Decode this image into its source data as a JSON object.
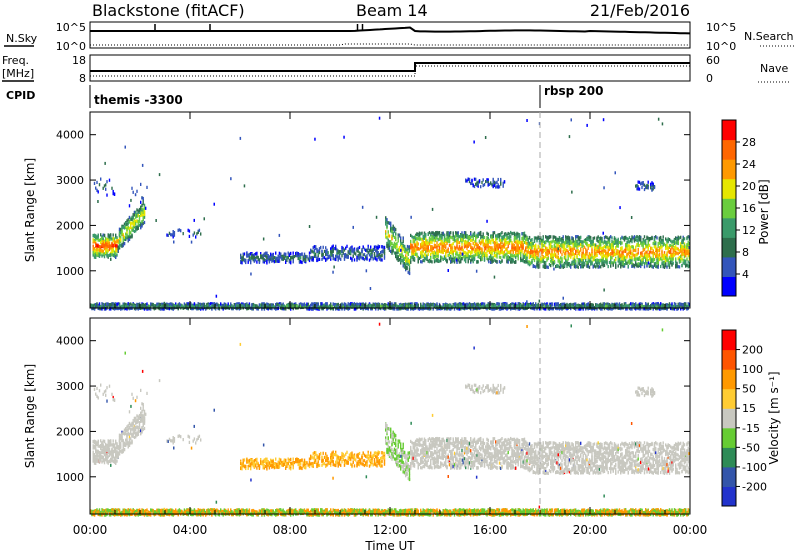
{
  "header": {
    "station": "Blackstone (fitACF)",
    "beam": "Beam 14",
    "date": "21/Feb/2016"
  },
  "summary": {
    "nsky_label": "N.Sky",
    "nsky_ticks": [
      "10^5",
      "10^0"
    ],
    "nsearch_label": "N.Search",
    "nsearch_ticks": [
      "10^5",
      "10^0"
    ],
    "freq_label": "Freq.",
    "freq_unit": "[MHz]",
    "freq_ticks": [
      "18",
      "8"
    ],
    "nave_label": "Nave",
    "nave_ticks": [
      "60",
      "0"
    ],
    "cpid_label": "CPID",
    "cpid_segments": [
      {
        "label": "themis -3300",
        "start_hour": 0
      },
      {
        "label": "rbsp 200",
        "start_hour": 18
      }
    ]
  },
  "colors": {
    "power_scale": [
      "#0000ff",
      "#3355bb",
      "#2e6e4c",
      "#3a9a6a",
      "#6acd3e",
      "#e6e600",
      "#ff9900",
      "#ff6600",
      "#ff0000"
    ],
    "velocity_scale": [
      "#ff0000",
      "#ff5500",
      "#ff9900",
      "#ffcc33",
      "#c8c8c0",
      "#66cc33",
      "#2e8b57",
      "#3355aa",
      "#2233cc"
    ]
  },
  "chart_data": [
    {
      "type": "heatmap",
      "name": "power",
      "ylabel": "Slant Range [km]",
      "yticks": [
        "4000",
        "3000",
        "2000",
        "1000"
      ],
      "ylim": [
        180,
        4500
      ],
      "xlim_hours": [
        0,
        24
      ],
      "colorbar_label": "Power [dB]",
      "colorbar_ticks": [
        "28",
        "24",
        "20",
        "16",
        "12",
        "8",
        "4"
      ],
      "colorbar_range": [
        0,
        32
      ]
    },
    {
      "type": "heatmap",
      "name": "velocity",
      "ylabel": "Slant Range [km]",
      "yticks": [
        "4000",
        "3000",
        "2000",
        "1000"
      ],
      "ylim": [
        180,
        4500
      ],
      "xlim_hours": [
        0,
        24
      ],
      "colorbar_label": "Velocity [m s⁻¹]",
      "colorbar_ticks": [
        "200",
        "100",
        "50",
        "15",
        "-15",
        "-50",
        "-100",
        "-200"
      ]
    }
  ],
  "xaxis": {
    "ticks": [
      "00:00",
      "04:00",
      "08:00",
      "12:00",
      "16:00",
      "20:00",
      "00:00"
    ],
    "tick_hours": [
      0,
      4,
      8,
      12,
      16,
      20,
      24
    ],
    "label": "Time UT"
  },
  "scatter_regions": [
    {
      "t0": 0.1,
      "t1": 1.1,
      "r_center": 1580,
      "r_spread": 250,
      "density": 0.95,
      "power": 22
    },
    {
      "t0": 1.1,
      "t1": 2.2,
      "r_center": "ramp",
      "r_from": 1700,
      "r_to": 2350,
      "r_spread": 250,
      "density": 0.85,
      "power": 16
    },
    {
      "t0": 0.1,
      "t1": 1.0,
      "r_center": 2880,
      "r_spread": 180,
      "density": 0.25,
      "power": 6
    },
    {
      "t0": 1.5,
      "t1": 2.3,
      "r_center": 2700,
      "r_spread": 300,
      "density": 0.2,
      "power": 7
    },
    {
      "t0": 6.0,
      "t1": 8.8,
      "r_center": 1320,
      "r_spread": 110,
      "density": 0.55,
      "power": 7
    },
    {
      "t0": 8.8,
      "t1": 11.8,
      "r_center": 1420,
      "r_spread": 160,
      "density": 0.55,
      "power": 7
    },
    {
      "t0": 3.0,
      "t1": 4.4,
      "r_center": 1860,
      "r_spread": 80,
      "density": 0.25,
      "power": 6
    },
    {
      "t0": 11.8,
      "t1": 12.8,
      "r_center": "ramp",
      "r_from": 1900,
      "r_to": 1250,
      "r_spread": 320,
      "density": 0.85,
      "power": 16
    },
    {
      "t0": 12.8,
      "t1": 17.5,
      "r_center": 1550,
      "r_spread": 330,
      "density": 0.95,
      "power": 20
    },
    {
      "t0": 17.5,
      "t1": 24.0,
      "r_center": 1450,
      "r_spread": 340,
      "density": 0.95,
      "power": 19
    },
    {
      "t0": 15.0,
      "t1": 16.6,
      "r_center": 2970,
      "r_spread": 90,
      "density": 0.35,
      "power": 6
    },
    {
      "t0": 21.8,
      "t1": 22.6,
      "r_center": 2900,
      "r_spread": 90,
      "density": 0.4,
      "power": 6
    },
    {
      "t0": 0.0,
      "t1": 24.0,
      "r_center": 250,
      "r_spread": 60,
      "density": 0.6,
      "power": 10
    }
  ]
}
